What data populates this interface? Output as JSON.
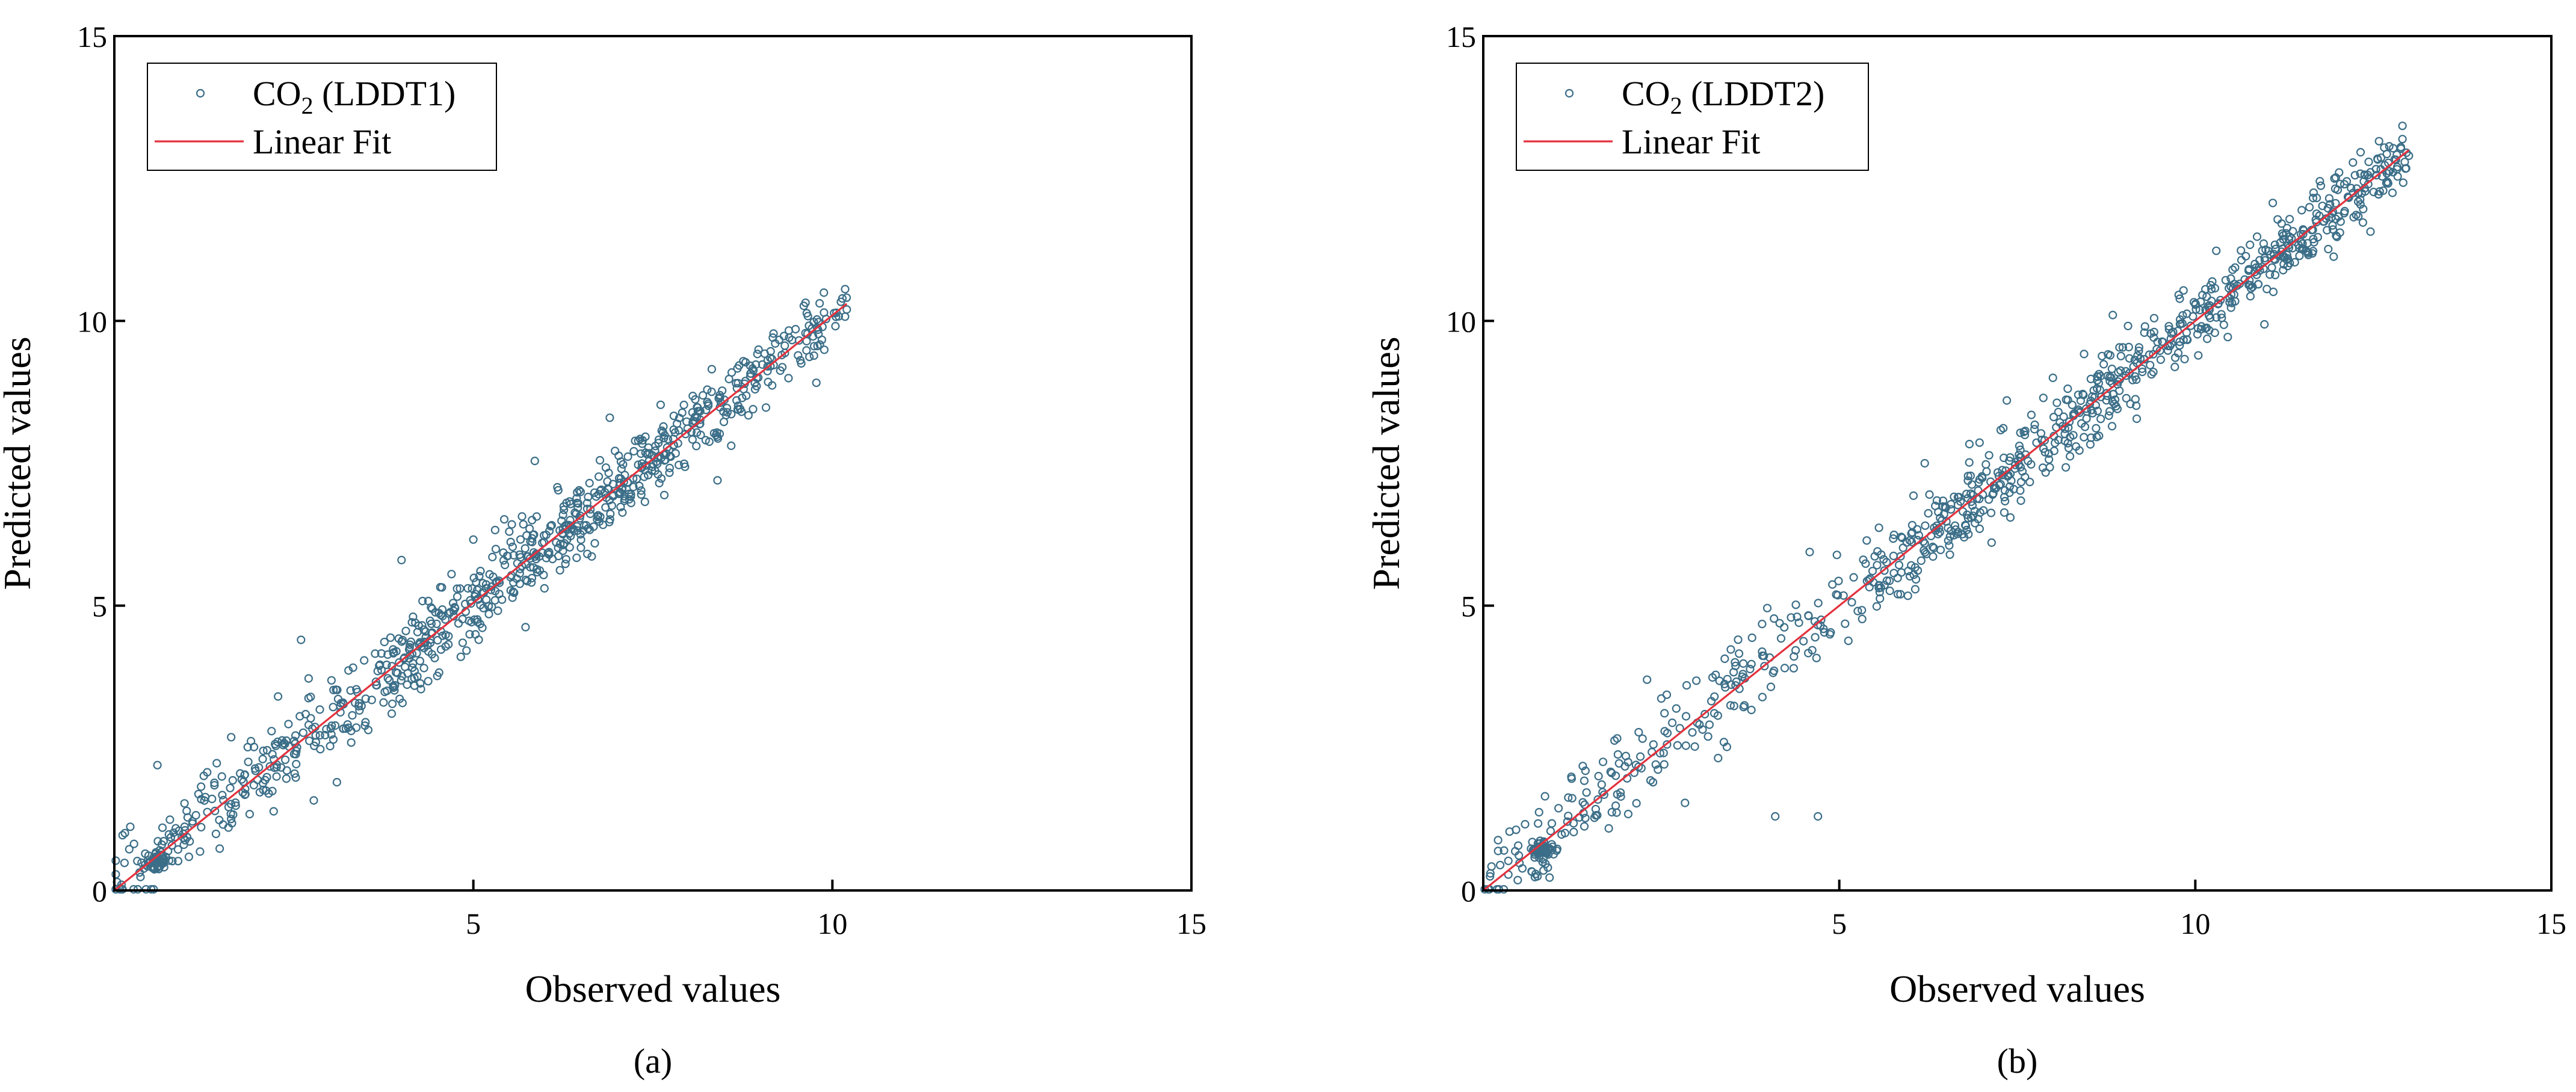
{
  "figure": {
    "panel_count": 2
  },
  "colors": {
    "point": "#3b6e88",
    "fit": "#e4323e",
    "axis": "#000000",
    "background": "#ffffff"
  },
  "chart_data": [
    {
      "type": "scatter",
      "panel": "a",
      "caption": "(a)",
      "xlabel": "Observed values",
      "ylabel": "Predicted values",
      "xlim": [
        0,
        15
      ],
      "ylim": [
        0,
        15
      ],
      "xticks": [
        5,
        10,
        15
      ],
      "yticks": [
        0,
        5,
        10,
        15
      ],
      "grid": false,
      "legend": {
        "placement": "top-left",
        "series_label": "CO",
        "series_subscript": "2",
        "series_suffix": " (LDDT1)",
        "fit_label": "Linear Fit"
      },
      "series": [
        {
          "name": "CO2 (LDDT1)",
          "kind": "scatter",
          "points_generated": 900,
          "distribution": {
            "x_range": [
              0,
              10.2
            ],
            "core_x_range": [
              3.8,
              8.6
            ],
            "residual_sd_low_x": 0.4,
            "residual_sd_high_x": 0.3,
            "cluster_near_origin": [
              0.6,
              0.5
            ]
          },
          "sample_points": [
            [
              0.1,
              0.1
            ],
            [
              0.6,
              0.4
            ],
            [
              0.6,
              2.2
            ],
            [
              2.6,
              4.4
            ],
            [
              3.1,
              1.9
            ],
            [
              4.0,
              5.8
            ],
            [
              5.5,
              6.3
            ],
            [
              6.9,
              8.3
            ],
            [
              8.4,
              7.2
            ],
            [
              10.2,
              10.2
            ]
          ]
        },
        {
          "name": "Linear Fit",
          "kind": "line",
          "x": [
            0,
            10.2
          ],
          "y": [
            0,
            10.3
          ]
        }
      ]
    },
    {
      "type": "scatter",
      "panel": "b",
      "caption": "(b)",
      "xlabel": "Observed values",
      "ylabel": "Predicted values",
      "xlim": [
        0,
        15
      ],
      "ylim": [
        0,
        15
      ],
      "xticks": [
        5,
        10,
        15
      ],
      "yticks": [
        0,
        5,
        10,
        15
      ],
      "grid": false,
      "legend": {
        "placement": "top-left",
        "series_label": "CO",
        "series_subscript": "2",
        "series_suffix": " (LDDT2)",
        "fit_label": "Linear Fit"
      },
      "series": [
        {
          "name": "CO2 (LDDT2)",
          "kind": "scatter",
          "points_generated": 950,
          "distribution": {
            "x_range": [
              0,
              13.0
            ],
            "core_x_range": [
              5.5,
              11.5
            ],
            "residual_sd_low_x": 0.45,
            "residual_sd_high_x": 0.3,
            "cluster_near_origin": [
              0.8,
              0.7
            ]
          },
          "sample_points": [
            [
              0.1,
              0.3
            ],
            [
              0.8,
              0.7
            ],
            [
              2.3,
              3.7
            ],
            [
              4.1,
              1.3
            ],
            [
              4.7,
              1.3
            ],
            [
              6.2,
              7.5
            ],
            [
              8.0,
              9.0
            ],
            [
              10.5,
              10.6
            ],
            [
              12.0,
              12.3
            ],
            [
              13.0,
              12.9
            ]
          ]
        },
        {
          "name": "Linear Fit",
          "kind": "line",
          "x": [
            0,
            13.0
          ],
          "y": [
            0,
            13.0
          ]
        }
      ]
    }
  ]
}
